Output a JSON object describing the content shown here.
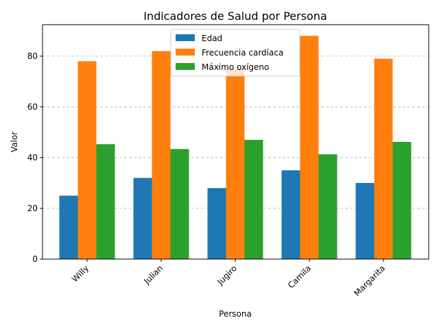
{
  "chart_data": {
    "type": "bar",
    "title": "Indicadores de Salud por Persona",
    "xlabel": "Persona",
    "ylabel": "Valor",
    "categories": [
      "Willy",
      "Julian",
      "Jugiro",
      "Camila",
      "Margarita"
    ],
    "series": [
      {
        "name": "Edad",
        "color": "#1f77b4",
        "values": [
          25,
          32,
          28,
          35,
          30
        ]
      },
      {
        "name": "Frecuencia cardíaca",
        "color": "#ff7f0e",
        "values": [
          78,
          82,
          75,
          88,
          79
        ]
      },
      {
        "name": "Máximo oxígeno",
        "color": "#2ca02c",
        "values": [
          45.3,
          43.4,
          47.0,
          41.3,
          46.2
        ]
      }
    ],
    "ylim": [
      0,
      92.4
    ],
    "yticks": [
      0,
      20,
      40,
      60,
      80
    ],
    "grid": "y-dashed",
    "legend": "top-center",
    "xtick_rotation": 45
  }
}
